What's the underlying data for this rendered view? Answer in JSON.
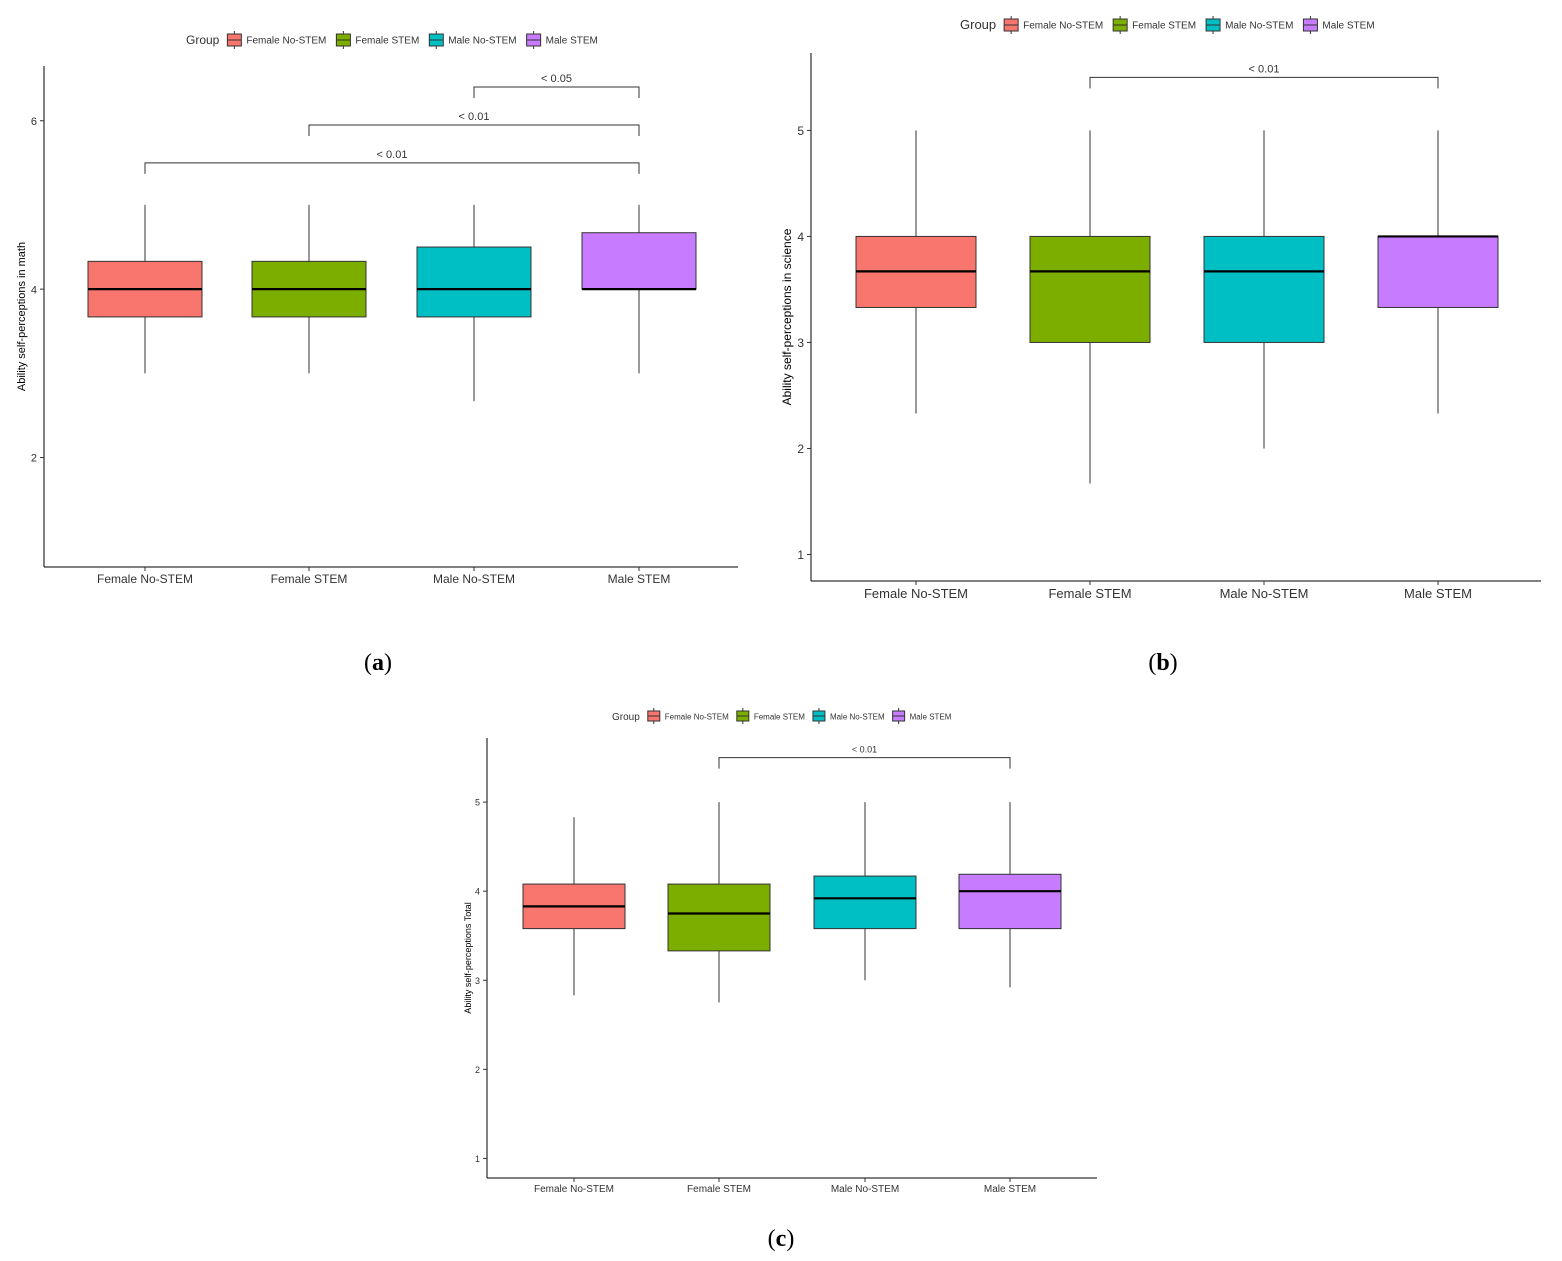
{
  "figure": {
    "panels": [
      "a",
      "b",
      "c"
    ]
  },
  "colors": {
    "Female No-STEM": "#F8766D",
    "Female STEM": "#7CAE00",
    "Male No-STEM": "#00BFC4",
    "Male STEM": "#C77CFF"
  },
  "chart_data": [
    {
      "id": "a",
      "type": "boxplot",
      "legend_title": "Group",
      "legend_position": "top",
      "categories": [
        "Female No-STEM",
        "Female STEM",
        "Male No-STEM",
        "Male STEM"
      ],
      "ylabel": "Ability self-perceptions in math",
      "xlabel": "",
      "ylim": [
        0.7,
        6.65
      ],
      "yticks": [
        "2",
        "4",
        "6"
      ],
      "ytick_values": [
        2,
        4,
        6
      ],
      "boxes": [
        {
          "group": "Female No-STEM",
          "min": 3.0,
          "q1": 3.67,
          "median": 4.0,
          "q3": 4.33,
          "max": 5.0
        },
        {
          "group": "Female STEM",
          "min": 3.0,
          "q1": 3.67,
          "median": 4.0,
          "q3": 4.33,
          "max": 5.0
        },
        {
          "group": "Male No-STEM",
          "min": 2.67,
          "q1": 3.67,
          "median": 4.0,
          "q3": 4.5,
          "max": 5.0
        },
        {
          "group": "Male STEM",
          "min": 3.0,
          "q1": 4.0,
          "median": 4.0,
          "q3": 4.67,
          "max": 5.0
        }
      ],
      "brackets": [
        {
          "from": 2,
          "to": 3,
          "y": 6.4,
          "label": "< 0.05"
        },
        {
          "from": 1,
          "to": 3,
          "y": 5.95,
          "label": "< 0.01"
        },
        {
          "from": 0,
          "to": 3,
          "y": 5.5,
          "label": "< 0.01"
        }
      ]
    },
    {
      "id": "b",
      "type": "boxplot",
      "legend_title": "Group",
      "legend_position": "top",
      "categories": [
        "Female No-STEM",
        "Female STEM",
        "Male No-STEM",
        "Male STEM"
      ],
      "ylabel": "Ability self-perceptions in science",
      "xlabel": "",
      "ylim": [
        0.75,
        5.73
      ],
      "yticks": [
        "1",
        "2",
        "3",
        "4",
        "5"
      ],
      "ytick_values": [
        1,
        2,
        3,
        4,
        5
      ],
      "boxes": [
        {
          "group": "Female No-STEM",
          "min": 2.33,
          "q1": 3.33,
          "median": 3.67,
          "q3": 4.0,
          "max": 5.0
        },
        {
          "group": "Female STEM",
          "min": 1.67,
          "q1": 3.0,
          "median": 3.67,
          "q3": 4.0,
          "max": 5.0
        },
        {
          "group": "Male No-STEM",
          "min": 2.0,
          "q1": 3.0,
          "median": 3.67,
          "q3": 4.0,
          "max": 5.0
        },
        {
          "group": "Male STEM",
          "min": 2.33,
          "q1": 3.33,
          "median": 4.0,
          "q3": 4.0,
          "max": 5.0
        }
      ],
      "brackets": [
        {
          "from": 1,
          "to": 3,
          "y": 5.5,
          "label": "< 0.01"
        }
      ]
    },
    {
      "id": "c",
      "type": "boxplot",
      "legend_title": "Group",
      "legend_position": "top",
      "categories": [
        "Female No-STEM",
        "Female STEM",
        "Male No-STEM",
        "Male STEM"
      ],
      "ylabel": "Ability self-perceptions Total",
      "xlabel": "",
      "ylim": [
        0.78,
        5.72
      ],
      "yticks": [
        "1",
        "2",
        "3",
        "4",
        "5"
      ],
      "ytick_values": [
        1,
        2,
        3,
        4,
        5
      ],
      "boxes": [
        {
          "group": "Female No-STEM",
          "min": 2.83,
          "q1": 3.58,
          "median": 3.83,
          "q3": 4.08,
          "max": 4.83
        },
        {
          "group": "Female STEM",
          "min": 2.75,
          "q1": 3.33,
          "median": 3.75,
          "q3": 4.08,
          "max": 5.0
        },
        {
          "group": "Male No-STEM",
          "min": 3.0,
          "q1": 3.58,
          "median": 3.92,
          "q3": 4.17,
          "max": 5.0
        },
        {
          "group": "Male STEM",
          "min": 2.92,
          "q1": 3.58,
          "median": 4.0,
          "q3": 4.19,
          "max": 5.0
        }
      ],
      "brackets": [
        {
          "from": 1,
          "to": 3,
          "y": 5.5,
          "label": "< 0.01"
        }
      ]
    }
  ]
}
